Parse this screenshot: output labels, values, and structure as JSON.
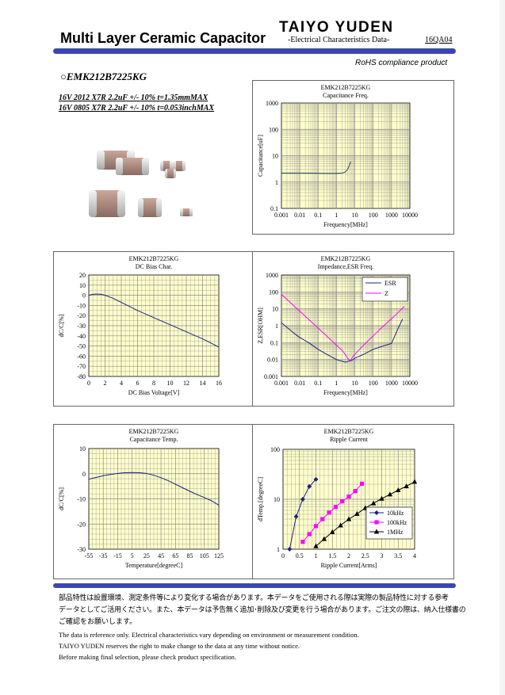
{
  "header": {
    "title": "Multi Layer Ceramic Capacitor",
    "brand": "TAIYO YUDEN",
    "subtitle": "-Electrical Characteristics Data-",
    "code": "16QA04",
    "rohs": "RoHS compliance product"
  },
  "product": {
    "part_number": "○EMK212B7225KG",
    "spec_line_1": "16V 2012 X7R 2.2uF +/- 10% t=1.35mmMAX",
    "spec_line_2": "16V 0805 X7R 2.2uF +/- 10% t=0.053inchMAX"
  },
  "colors": {
    "accent_bar": "#3344cc",
    "plot_background": "#ffffcc",
    "grid": "#888888",
    "series_blue": "#1a237e",
    "series_magenta": "#ff00ff",
    "series_black": "#000000"
  },
  "chart_data": [
    {
      "id": "capacitance-freq",
      "type": "line",
      "title": "EMK212B7225KG",
      "subtitle": "Capacitance Freq.",
      "xlabel": "Frequency[MHz]",
      "ylabel": "Capacitance[uF]",
      "xscale": "log",
      "yscale": "log",
      "xlim": [
        0.001,
        10000
      ],
      "ylim": [
        0.1,
        1000
      ],
      "xticks": [
        "0.001",
        "0.01",
        "0.1",
        "1",
        "10",
        "100",
        "1000",
        "10000"
      ],
      "yticks": [
        "0.1",
        "1",
        "10",
        "100",
        "1000"
      ],
      "grid": true,
      "series": [
        {
          "color": "#1a4a5a",
          "x": [
            0.001,
            0.01,
            0.05,
            0.2,
            1,
            2,
            3,
            4,
            5,
            6
          ],
          "y": [
            2.2,
            2.2,
            2.18,
            2.15,
            2.15,
            2.2,
            2.4,
            3.0,
            4.2,
            6.0
          ]
        }
      ]
    },
    {
      "id": "dc-bias",
      "type": "line",
      "title": "EMK212B7225KG",
      "subtitle": "DC Bias Char.",
      "xlabel": "DC Bias Voltage[V]",
      "ylabel": "dC/C[%]",
      "xlim": [
        0,
        16
      ],
      "ylim": [
        -80,
        20
      ],
      "xticks": [
        "0",
        "2",
        "4",
        "6",
        "8",
        "10",
        "12",
        "14",
        "16"
      ],
      "yticks": [
        "20",
        "10",
        "0",
        "-10",
        "-20",
        "-30",
        "-40",
        "-50",
        "-60",
        "-70",
        "-80"
      ],
      "grid": true,
      "series": [
        {
          "color": "#1a237e",
          "x": [
            0,
            0.5,
            1,
            1.5,
            2,
            3,
            4,
            5,
            6,
            8,
            10,
            12,
            14,
            16
          ],
          "y": [
            0,
            1,
            1.2,
            1,
            0,
            -3,
            -7,
            -11,
            -15,
            -22,
            -29,
            -36,
            -43,
            -51
          ]
        }
      ]
    },
    {
      "id": "impedance-esr",
      "type": "line",
      "title": "EMK212B7225KG",
      "subtitle": "Impedance,ESR Freq.",
      "xlabel": "Frequency[MHz]",
      "ylabel": "Z,ESR[OHM]",
      "xscale": "log",
      "yscale": "log",
      "xlim": [
        0.001,
        10000
      ],
      "ylim": [
        0.001,
        1000
      ],
      "xticks": [
        "0.001",
        "0.01",
        "0.1",
        "1",
        "10",
        "100",
        "1000",
        "10000"
      ],
      "yticks": [
        "0.001",
        "0.01",
        "0.1",
        "1",
        "10",
        "100",
        "1000"
      ],
      "grid": true,
      "legend": "top-right",
      "series": [
        {
          "name": "ESR",
          "color": "#1a237e",
          "x": [
            0.001,
            0.002,
            0.005,
            0.01,
            0.03,
            0.1,
            0.3,
            1,
            3,
            5,
            7,
            10,
            30,
            100,
            300,
            1000,
            2000,
            4000
          ],
          "y": [
            1.5,
            0.8,
            0.35,
            0.2,
            0.1,
            0.04,
            0.02,
            0.01,
            0.007,
            0.008,
            0.009,
            0.012,
            0.02,
            0.04,
            0.06,
            0.09,
            0.5,
            2.5
          ]
        },
        {
          "name": "Z",
          "color": "#ff00ff",
          "x": [
            0.001,
            0.003,
            0.01,
            0.03,
            0.1,
            0.3,
            1,
            2,
            3,
            4,
            5,
            6,
            8,
            10,
            20,
            50,
            100,
            300,
            1000,
            3000,
            5000
          ],
          "y": [
            72,
            24,
            7.2,
            2.4,
            0.72,
            0.24,
            0.07,
            0.035,
            0.02,
            0.012,
            0.009,
            0.009,
            0.015,
            0.02,
            0.045,
            0.12,
            0.25,
            0.8,
            2.6,
            8,
            14
          ]
        }
      ]
    },
    {
      "id": "capacitance-temp",
      "type": "line",
      "title": "EMK212B7225KG",
      "subtitle": "Capacitance Temp.",
      "xlabel": "Temperature[degreeC]",
      "ylabel": "dC/C[%]",
      "xlim": [
        -55,
        125
      ],
      "ylim": [
        -30,
        10
      ],
      "xticks": [
        "-55",
        "-35",
        "-15",
        "5",
        "25",
        "45",
        "65",
        "85",
        "105",
        "125"
      ],
      "yticks": [
        "10",
        "0",
        "-10",
        "-20",
        "-30"
      ],
      "grid": true,
      "series": [
        {
          "color": "#1a237e",
          "x": [
            -55,
            -45,
            -35,
            -25,
            -15,
            -5,
            5,
            15,
            25,
            35,
            45,
            55,
            65,
            75,
            85,
            95,
            105,
            115,
            125
          ],
          "y": [
            -2.2,
            -1.5,
            -0.8,
            -0.3,
            0.1,
            0.4,
            0.5,
            0.4,
            0.1,
            -0.6,
            -1.6,
            -2.8,
            -4.2,
            -5.6,
            -7.0,
            -8.3,
            -9.5,
            -10.8,
            -12.5
          ]
        }
      ]
    },
    {
      "id": "ripple-current",
      "type": "line",
      "title": "EMK212B7225KG",
      "subtitle": "Ripple Current",
      "xlabel": "Ripple Current[Arms]",
      "ylabel": "dTemp.[degreeC]",
      "yscale": "log",
      "xlim": [
        0,
        4
      ],
      "ylim": [
        1,
        100
      ],
      "xticks": [
        "0",
        "0.5",
        "1",
        "1.5",
        "2",
        "2.5",
        "3",
        "3.5",
        "4"
      ],
      "yticks": [
        "1",
        "10",
        "100"
      ],
      "grid": true,
      "legend": "bottom-right",
      "series": [
        {
          "name": "10kHz",
          "color": "#1a237e",
          "marker": "diamond",
          "x": [
            0.2,
            0.4,
            0.6,
            0.8,
            1.0
          ],
          "y": [
            1.0,
            4.5,
            10,
            18,
            25
          ]
        },
        {
          "name": "100kHz",
          "color": "#ff00ff",
          "marker": "square",
          "x": [
            0.6,
            0.8,
            1.0,
            1.2,
            1.4,
            1.6,
            1.8,
            2.0,
            2.2,
            2.4
          ],
          "y": [
            1.4,
            2.0,
            2.9,
            4.0,
            5.4,
            7.0,
            9.1,
            11.3,
            14.6,
            20.5
          ]
        },
        {
          "name": "1MHz",
          "color": "#000000",
          "marker": "triangle",
          "x": [
            1.0,
            1.25,
            1.5,
            1.75,
            2.0,
            2.25,
            2.5,
            2.75,
            3.0,
            3.25,
            3.5,
            3.75,
            4.0
          ],
          "y": [
            1.15,
            1.6,
            2.2,
            3.0,
            4.0,
            5.1,
            6.7,
            8.3,
            10.3,
            12.5,
            15.2,
            18.2,
            22.5
          ]
        }
      ]
    }
  ],
  "footer": {
    "jp_line_1": "部品特性は設置環境、測定条件等により変化する場合があります。本データをご使用される際は実際の製品特性に対する参考",
    "jp_line_2": "データとしてご活用ください。また、本データは予告無く追加･削除及び変更を行う場合があります。ご注文の際は、納入仕様書の",
    "jp_line_3": "ご確認をお願いします。",
    "en_line_1": "The data is reference only. Electrical characteristics vary depending on environment or measurement condition.",
    "en_line_2": "TAIYO YUDEN reserves the right to make change to the data at any time without notice.",
    "en_line_3": "Before making final selection, please check product specification."
  }
}
